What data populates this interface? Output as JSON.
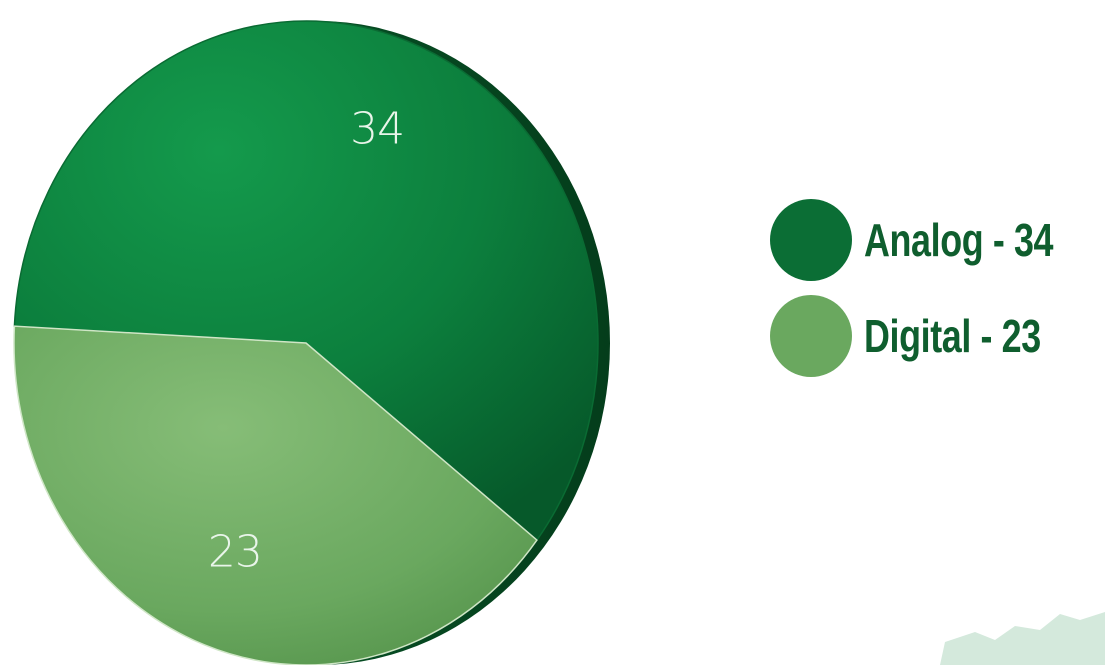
{
  "chart_data": {
    "type": "pie",
    "categories": [
      "Analog",
      "Digital"
    ],
    "values": [
      34,
      23
    ],
    "slice_labels": [
      "34",
      "23"
    ],
    "legend": [
      "Analog - 34",
      "Digital - 23"
    ],
    "legend_position": "right",
    "colors": {
      "Analog": "#0b7a3b",
      "Digital": "#6aa85f"
    }
  }
}
